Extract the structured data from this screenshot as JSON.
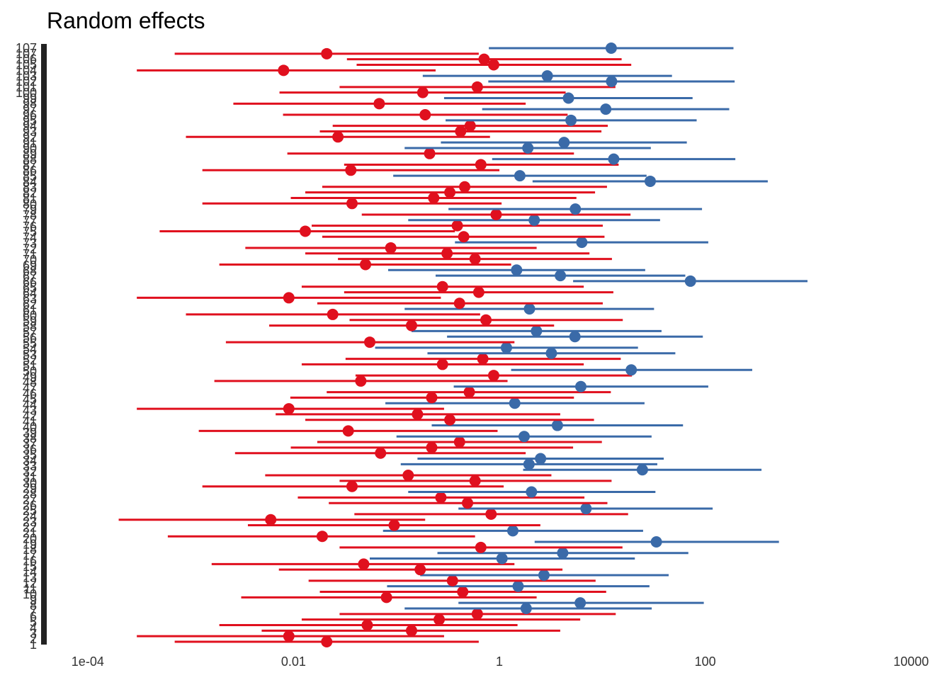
{
  "chart_data": {
    "type": "forest",
    "title": "Random effects",
    "x_axis": {
      "scale": "log10",
      "range": [
        4e-05,
        20000
      ],
      "ticks": [
        0.0001,
        0.01,
        1,
        100,
        10000
      ],
      "tick_labels": [
        "1e-04",
        "0.01",
        "1",
        "100",
        "10000"
      ]
    },
    "y_axis": {
      "n_levels": 108,
      "first_label": "1",
      "last_label": "107",
      "note": "108 overlapping level labels (1 to 107) drawn over one another"
    },
    "grid": false,
    "legend": "none",
    "colors": {
      "negative": "#e0101e",
      "positive": "#3a6aa8",
      "axis": "#222222",
      "text": "#333333"
    },
    "estimates": [
      0.021,
      0.009,
      0.14,
      0.052,
      0.26,
      0.61,
      1.82,
      6.1,
      0.08,
      0.44,
      1.52,
      0.35,
      2.71,
      0.17,
      0.048,
      1.06,
      4.12,
      0.66,
      33.5,
      0.019,
      1.35,
      0.095,
      0.006,
      0.83,
      6.95,
      0.49,
      0.27,
      2.05,
      0.037,
      0.58,
      0.13,
      24.5,
      1.94,
      2.51,
      0.07,
      0.22,
      0.41,
      1.74,
      0.034,
      3.66,
      0.33,
      0.16,
      0.009,
      1.41,
      0.22,
      0.51,
      6.18,
      0.045,
      0.88,
      19.1,
      0.28,
      0.69,
      3.2,
      1.17,
      0.055,
      5.42,
      2.29,
      0.14,
      0.74,
      0.024,
      1.96,
      0.41,
      0.009,
      0.63,
      0.28,
      71.8,
      3.91,
      1.47,
      0.05,
      0.58,
      0.31,
      0.088,
      6.32,
      0.45,
      0.013,
      0.39,
      2.18,
      0.93,
      5.47,
      0.037,
      0.23,
      0.33,
      0.46,
      29.2,
      1.58,
      0.036,
      0.66,
      12.9,
      0.21,
      1.89,
      4.25,
      0.027,
      0.42,
      0.52,
      4.96,
      0.19,
      10.8,
      0.068,
      4.69,
      0.18,
      0.61,
      12.3,
      2.92,
      0.008,
      0.88,
      0.71,
      0.021,
      12.2
    ],
    "lower": [
      0.0007,
      0.0003,
      0.0049,
      0.0019,
      0.012,
      0.028,
      0.12,
      0.4,
      0.0031,
      0.018,
      0.081,
      0.014,
      0.17,
      0.0072,
      0.0016,
      0.055,
      0.25,
      0.028,
      2.2,
      0.0006,
      0.074,
      0.0036,
      0.0002,
      0.039,
      0.4,
      0.022,
      0.011,
      0.13,
      0.0013,
      0.028,
      0.0053,
      1.7,
      0.11,
      0.16,
      0.0027,
      0.0094,
      0.017,
      0.1,
      0.0012,
      0.22,
      0.013,
      0.0067,
      0.0003,
      0.078,
      0.0093,
      0.021,
      0.36,
      0.0017,
      0.04,
      1.3,
      0.012,
      0.032,
      0.2,
      0.062,
      0.0022,
      0.31,
      0.14,
      0.0058,
      0.035,
      0.0009,
      0.12,
      0.017,
      0.0003,
      0.031,
      0.012,
      5.2,
      0.24,
      0.083,
      0.0019,
      0.027,
      0.013,
      0.0034,
      0.37,
      0.019,
      0.0005,
      0.015,
      0.13,
      0.046,
      0.32,
      0.0013,
      0.0094,
      0.013,
      0.019,
      2.1,
      0.093,
      0.0013,
      0.031,
      0.85,
      0.0087,
      0.12,
      0.27,
      0.0009,
      0.018,
      0.024,
      0.3,
      0.0079,
      0.68,
      0.0026,
      0.29,
      0.0073,
      0.028,
      0.78,
      0.18,
      0.0003,
      0.041,
      0.033,
      0.0007,
      0.79
    ],
    "upper": [
      0.63,
      0.29,
      3.9,
      1.5,
      6.1,
      13.5,
      30.2,
      96.8,
      2.3,
      10.9,
      28.7,
      8.6,
      44.1,
      4.1,
      1.4,
      20.7,
      68.5,
      15.7,
      520,
      0.58,
      24.9,
      2.5,
      0.19,
      17.8,
      118,
      11.2,
      6.7,
      32.8,
      1.1,
      12.3,
      3.2,
      352,
      34.2,
      39.5,
      1.8,
      5.2,
      9.9,
      30.1,
      0.96,
      60.8,
      8.3,
      3.9,
      0.29,
      25.7,
      5.3,
      12.1,
      107,
      1.2,
      19.4,
      286,
      6.6,
      15.1,
      51.2,
      22.2,
      1.4,
      94.7,
      37.6,
      3.4,
      15.8,
      0.65,
      31.8,
      10.1,
      0.27,
      12.8,
      6.6,
      985,
      64,
      26.1,
      1.3,
      12.4,
      7.5,
      2.3,
      107,
      10.5,
      0.37,
      10.1,
      36.4,
      18.8,
      93,
      1.05,
      5.6,
      8.5,
      11.1,
      405,
      26.9,
      1.0,
      14.4,
      196,
      5.3,
      29.6,
      66.2,
      0.81,
      9.8,
      11.3,
      82.5,
      4.6,
      171,
      1.8,
      75.3,
      4.4,
      13.4,
      193,
      47.5,
      0.24,
      19.1,
      15.4,
      0.63,
      188
    ]
  }
}
